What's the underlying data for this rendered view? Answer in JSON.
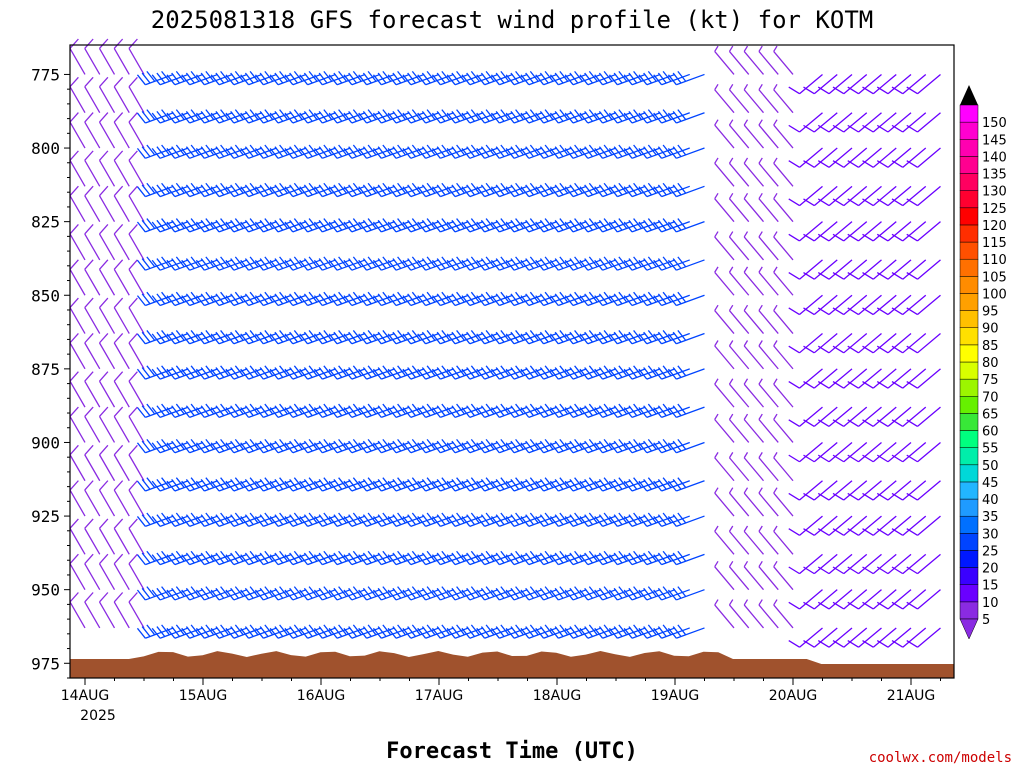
{
  "chart_data": {
    "type": "wind-barb-timeseries",
    "title": "2025081318 GFS forecast wind profile (kt) for KOTM",
    "xlabel": "Forecast Time (UTC)",
    "ylabel": "",
    "x_ticks": [
      "14AUG",
      "15AUG",
      "16AUG",
      "17AUG",
      "18AUG",
      "19AUG",
      "20AUG",
      "21AUG"
    ],
    "x_year": "2025",
    "y_ticks": [
      775,
      800,
      825,
      850,
      875,
      900,
      925,
      950,
      975
    ],
    "ylim": [
      980,
      765
    ],
    "levels": [
      775,
      788,
      800,
      813,
      825,
      838,
      850,
      863,
      875,
      888,
      900,
      913,
      925,
      938,
      950,
      963,
      975
    ],
    "colorbar": {
      "labels": [
        5,
        10,
        15,
        20,
        25,
        30,
        35,
        40,
        45,
        50,
        55,
        60,
        65,
        70,
        75,
        80,
        85,
        90,
        95,
        100,
        105,
        110,
        115,
        120,
        125,
        130,
        135,
        140,
        145,
        150
      ],
      "colors": [
        "#8a2be2",
        "#6a00ff",
        "#3a00ff",
        "#0018ff",
        "#0044ff",
        "#0070ff",
        "#1f9bff",
        "#22b6ff",
        "#00d8d8",
        "#00eeaa",
        "#00ff7f",
        "#38e838",
        "#66f000",
        "#9cf500",
        "#d8ff00",
        "#ffff00",
        "#ffe000",
        "#ffc000",
        "#ffa000",
        "#ff8c00",
        "#ff7000",
        "#ff5000",
        "#ff2e00",
        "#ff0000",
        "#ff0030",
        "#ff0060",
        "#ff0090",
        "#ff00b0",
        "#ff00d0",
        "#ff00ff"
      ]
    },
    "barb_segments": [
      {
        "x_start": "14AUG 00Z",
        "x_end": "14AUG 12Z",
        "speed_kt": 8,
        "dir_deg": 330
      },
      {
        "x_start": "14AUG 18Z",
        "x_end": "19AUG 06Z",
        "speed_kt": 28,
        "dir_deg": 250
      },
      {
        "x_start": "19AUG 12Z",
        "x_end": "20AUG 00Z",
        "speed_kt": 6,
        "dir_deg": 320
      },
      {
        "x_start": "20AUG 06Z",
        "x_end": "21AUG 06Z",
        "speed_kt": 10,
        "dir_deg": 230
      }
    ],
    "terrain_color": "#a0522d",
    "grid": false,
    "legend": "right"
  },
  "credit": "coolwx.com/models"
}
